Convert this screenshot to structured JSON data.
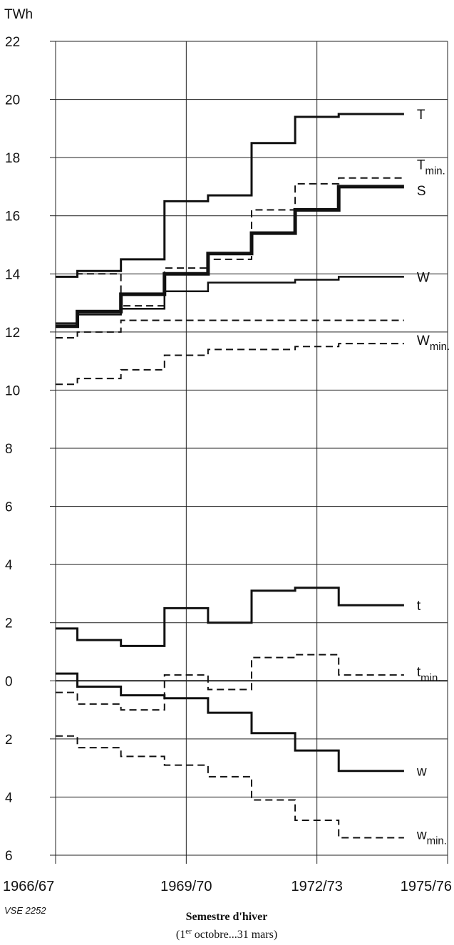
{
  "chart_data": {
    "type": "line",
    "unit_label": "TWh",
    "ylim": [
      -6,
      22
    ],
    "y_ticks": [
      {
        "value": 22,
        "label": "22"
      },
      {
        "value": 20,
        "label": "20"
      },
      {
        "value": 18,
        "label": "18"
      },
      {
        "value": 16,
        "label": "16"
      },
      {
        "value": 14,
        "label": "14"
      },
      {
        "value": 12,
        "label": "12"
      },
      {
        "value": 10,
        "label": "10"
      },
      {
        "value": 8,
        "label": "8"
      },
      {
        "value": 6,
        "label": "6"
      },
      {
        "value": 4,
        "label": "4"
      },
      {
        "value": 2,
        "label": "2"
      },
      {
        "value": 0,
        "label": "0"
      },
      {
        "value": -2,
        "label": "2"
      },
      {
        "value": -4,
        "label": "4"
      },
      {
        "value": -6,
        "label": "6"
      }
    ],
    "xlim": [
      1966,
      1975
    ],
    "x_ticks": [
      {
        "value": 1966,
        "label": "1966/67"
      },
      {
        "value": 1969,
        "label": "1969/70"
      },
      {
        "value": 1972,
        "label": "1972/73"
      },
      {
        "value": 1975,
        "label": "1975/76"
      }
    ],
    "grid": true,
    "xlabel": "Semestre d'hiver",
    "xlabel_sub": "(1er octobre...31 mars)",
    "xlabel_sub_parts": {
      "open": "(1",
      "sup": "er",
      "rest": " octobre...31 mars)"
    },
    "source_tag": "VSE 2252",
    "series": [
      {
        "name": "T",
        "label_main": "T",
        "label_sub": "",
        "style": "solid",
        "weight": 3,
        "x": [
          1966,
          1966.5,
          1967.5,
          1968.5,
          1969.5,
          1970.5,
          1971.5,
          1972.5,
          1973.5
        ],
        "values": [
          13.9,
          14.1,
          14.5,
          16.5,
          16.7,
          18.5,
          19.4,
          19.5,
          19.5
        ]
      },
      {
        "name": "Tmin.",
        "label_main": "T",
        "label_sub": "min.",
        "style": "dashed",
        "weight": 2,
        "x": [
          1966,
          1966.5,
          1967.5,
          1968.5,
          1969.5,
          1970.5,
          1971.5,
          1972.5,
          1973.5
        ],
        "values": [
          13.9,
          14.0,
          12.9,
          14.2,
          14.5,
          16.2,
          17.1,
          17.3,
          17.3
        ]
      },
      {
        "name": "S",
        "label_main": "S",
        "label_sub": "",
        "style": "solid",
        "weight": 5,
        "x": [
          1966,
          1966.5,
          1967.5,
          1968.5,
          1969.5,
          1970.5,
          1971.5,
          1972.5,
          1973.5
        ],
        "values": [
          12.2,
          12.7,
          13.3,
          14.0,
          14.7,
          15.4,
          16.2,
          17.0,
          17.0
        ]
      },
      {
        "name": "W",
        "label_main": "W",
        "label_sub": "",
        "style": "solid",
        "weight": 2.5,
        "x": [
          1966,
          1966.5,
          1967.5,
          1968.5,
          1969.5,
          1970.5,
          1971.5,
          1972.5,
          1973.5
        ],
        "values": [
          12.3,
          12.6,
          12.8,
          13.4,
          13.7,
          13.7,
          13.8,
          13.9,
          13.9
        ]
      },
      {
        "name": "Wmin.",
        "label_main": "W",
        "label_sub": "min.",
        "style": "dashed",
        "weight": 2,
        "x": [
          1966,
          1966.5,
          1967.5,
          1968.5,
          1969.5,
          1970.5,
          1971.5,
          1972.5,
          1973.5
        ],
        "values": [
          10.2,
          10.4,
          10.7,
          11.2,
          11.4,
          11.4,
          11.5,
          11.6,
          11.6
        ]
      },
      {
        "name": "S-aux",
        "label_main": "",
        "label_sub": "",
        "style": "dashed",
        "weight": 2,
        "x": [
          1966,
          1966.5,
          1967.5,
          1968.5
        ],
        "values": [
          11.8,
          12.0,
          12.4,
          12.4
        ]
      },
      {
        "name": "t",
        "label_main": "t",
        "label_sub": "",
        "style": "solid",
        "weight": 3,
        "x": [
          1966,
          1966.5,
          1967.5,
          1968.5,
          1969.5,
          1970.5,
          1971.5,
          1972.5,
          1973.5
        ],
        "values": [
          1.8,
          1.4,
          1.2,
          2.5,
          2.0,
          3.1,
          3.2,
          2.6,
          2.6
        ]
      },
      {
        "name": "tmin.",
        "label_main": "t",
        "label_sub": "min.",
        "style": "dashed",
        "weight": 2,
        "x": [
          1966,
          1966.5,
          1967.5,
          1968.5,
          1969.5,
          1970.5,
          1971.5,
          1972.5,
          1973.5
        ],
        "values": [
          -0.4,
          -0.8,
          -1.0,
          0.2,
          -0.3,
          0.8,
          0.9,
          0.2,
          0.2
        ]
      },
      {
        "name": "w",
        "label_main": "w",
        "label_sub": "",
        "style": "solid",
        "weight": 3,
        "x": [
          1966,
          1966.5,
          1967.5,
          1968.5,
          1969.5,
          1970.5,
          1971.5,
          1972.5,
          1973.5
        ],
        "values": [
          0.25,
          -0.2,
          -0.5,
          -0.6,
          -1.1,
          -1.8,
          -2.4,
          -3.1,
          -3.1
        ]
      },
      {
        "name": "wmin.",
        "label_main": "w",
        "label_sub": "min.",
        "style": "dashed",
        "weight": 2,
        "x": [
          1966,
          1966.5,
          1967.5,
          1968.5,
          1969.5,
          1970.5,
          1971.5,
          1972.5,
          1973.5
        ],
        "values": [
          -1.9,
          -2.3,
          -2.6,
          -2.9,
          -3.3,
          -4.1,
          -4.8,
          -5.4,
          -5.4
        ]
      }
    ]
  }
}
